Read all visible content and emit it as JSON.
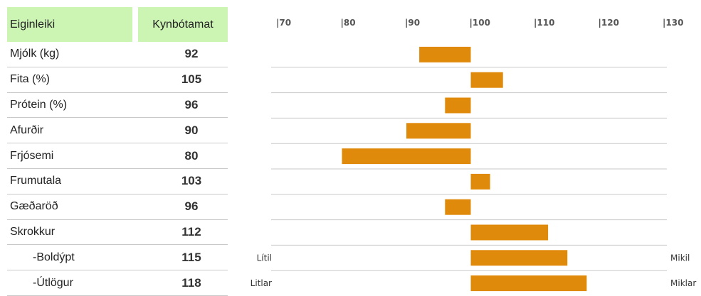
{
  "table": {
    "header_trait": "Eiginleiki",
    "header_value": "Kynbótamat"
  },
  "chart_data": {
    "type": "bar",
    "orientation": "horizontal",
    "baseline": 100,
    "xlim": [
      70,
      130
    ],
    "ticks": [
      "|70",
      "|80",
      "|90",
      "|100",
      "|110",
      "|120",
      "|130"
    ],
    "tick_values": [
      70,
      80,
      90,
      100,
      110,
      120,
      130
    ],
    "categories": [
      "Mjólk (kg)",
      "Fita (%)",
      "Prótein (%)",
      "Afurðir",
      "Frjósemi",
      "Frumutala",
      "Gæðaröð",
      "Skrokkur",
      "-Boldýpt",
      "-Útlögur"
    ],
    "values": [
      92,
      105,
      96,
      90,
      80,
      103,
      96,
      112,
      115,
      118
    ],
    "bar_color": "#e08a0b",
    "side_labels": [
      {
        "category": "-Boldýpt",
        "left": "Lítil",
        "right": "Mikil"
      },
      {
        "category": "-Útlögur",
        "left": "Litlar",
        "right": "Miklar"
      }
    ]
  }
}
